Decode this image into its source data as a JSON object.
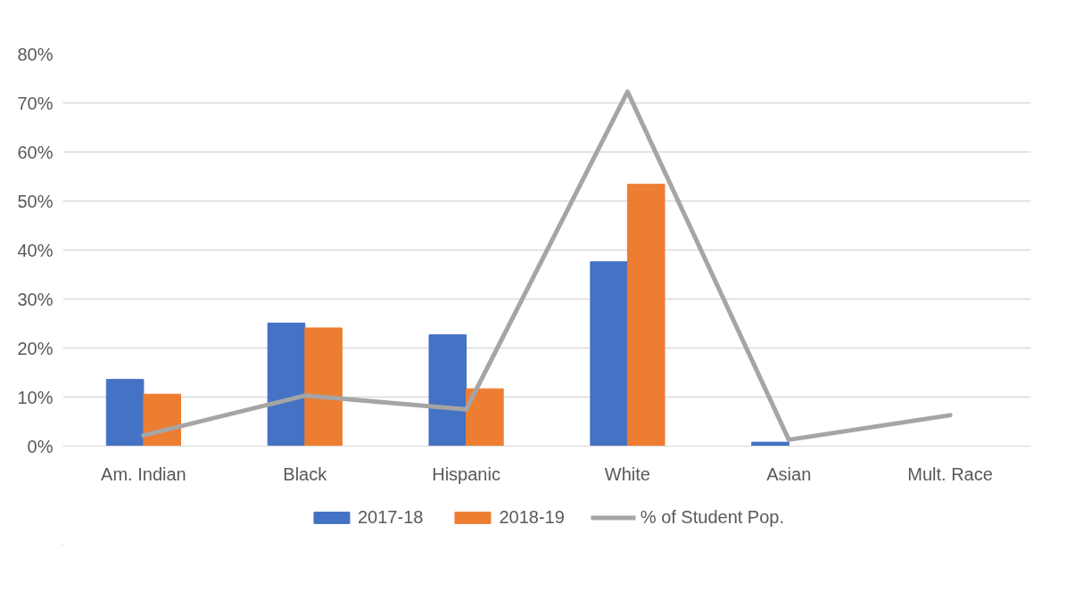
{
  "chart_data": {
    "type": "bar",
    "categories": [
      "Am. Indian",
      "Black",
      "Hispanic",
      "White",
      "Asian",
      "Mult. Race"
    ],
    "series": [
      {
        "name": "2017-18",
        "color": "#4472c4",
        "values": [
          13.6,
          25.1,
          22.7,
          37.6,
          0.8,
          null
        ]
      },
      {
        "name": "2018-19",
        "color": "#ed7d31",
        "values": [
          10.6,
          24.1,
          11.7,
          53.4,
          null,
          null
        ]
      },
      {
        "name": "% of Student Pop.",
        "type": "line",
        "color": "#a5a5a5",
        "values": [
          2.2,
          10.3,
          7.5,
          72.3,
          1.3,
          6.3
        ]
      }
    ],
    "ylim": [
      0,
      80
    ],
    "yticks": [
      {
        "value": 0,
        "label": "0%"
      },
      {
        "value": 10,
        "label": "10%"
      },
      {
        "value": 20,
        "label": "20%"
      },
      {
        "value": 30,
        "label": "30%"
      },
      {
        "value": 40,
        "label": "40%"
      },
      {
        "value": 50,
        "label": "50%"
      },
      {
        "value": 60,
        "label": "60%"
      },
      {
        "value": 70,
        "label": "70%"
      },
      {
        "value": 80,
        "label": "80%"
      }
    ],
    "grid": "y",
    "legend": "bottom",
    "marker": "none",
    "line_style": "solid"
  }
}
